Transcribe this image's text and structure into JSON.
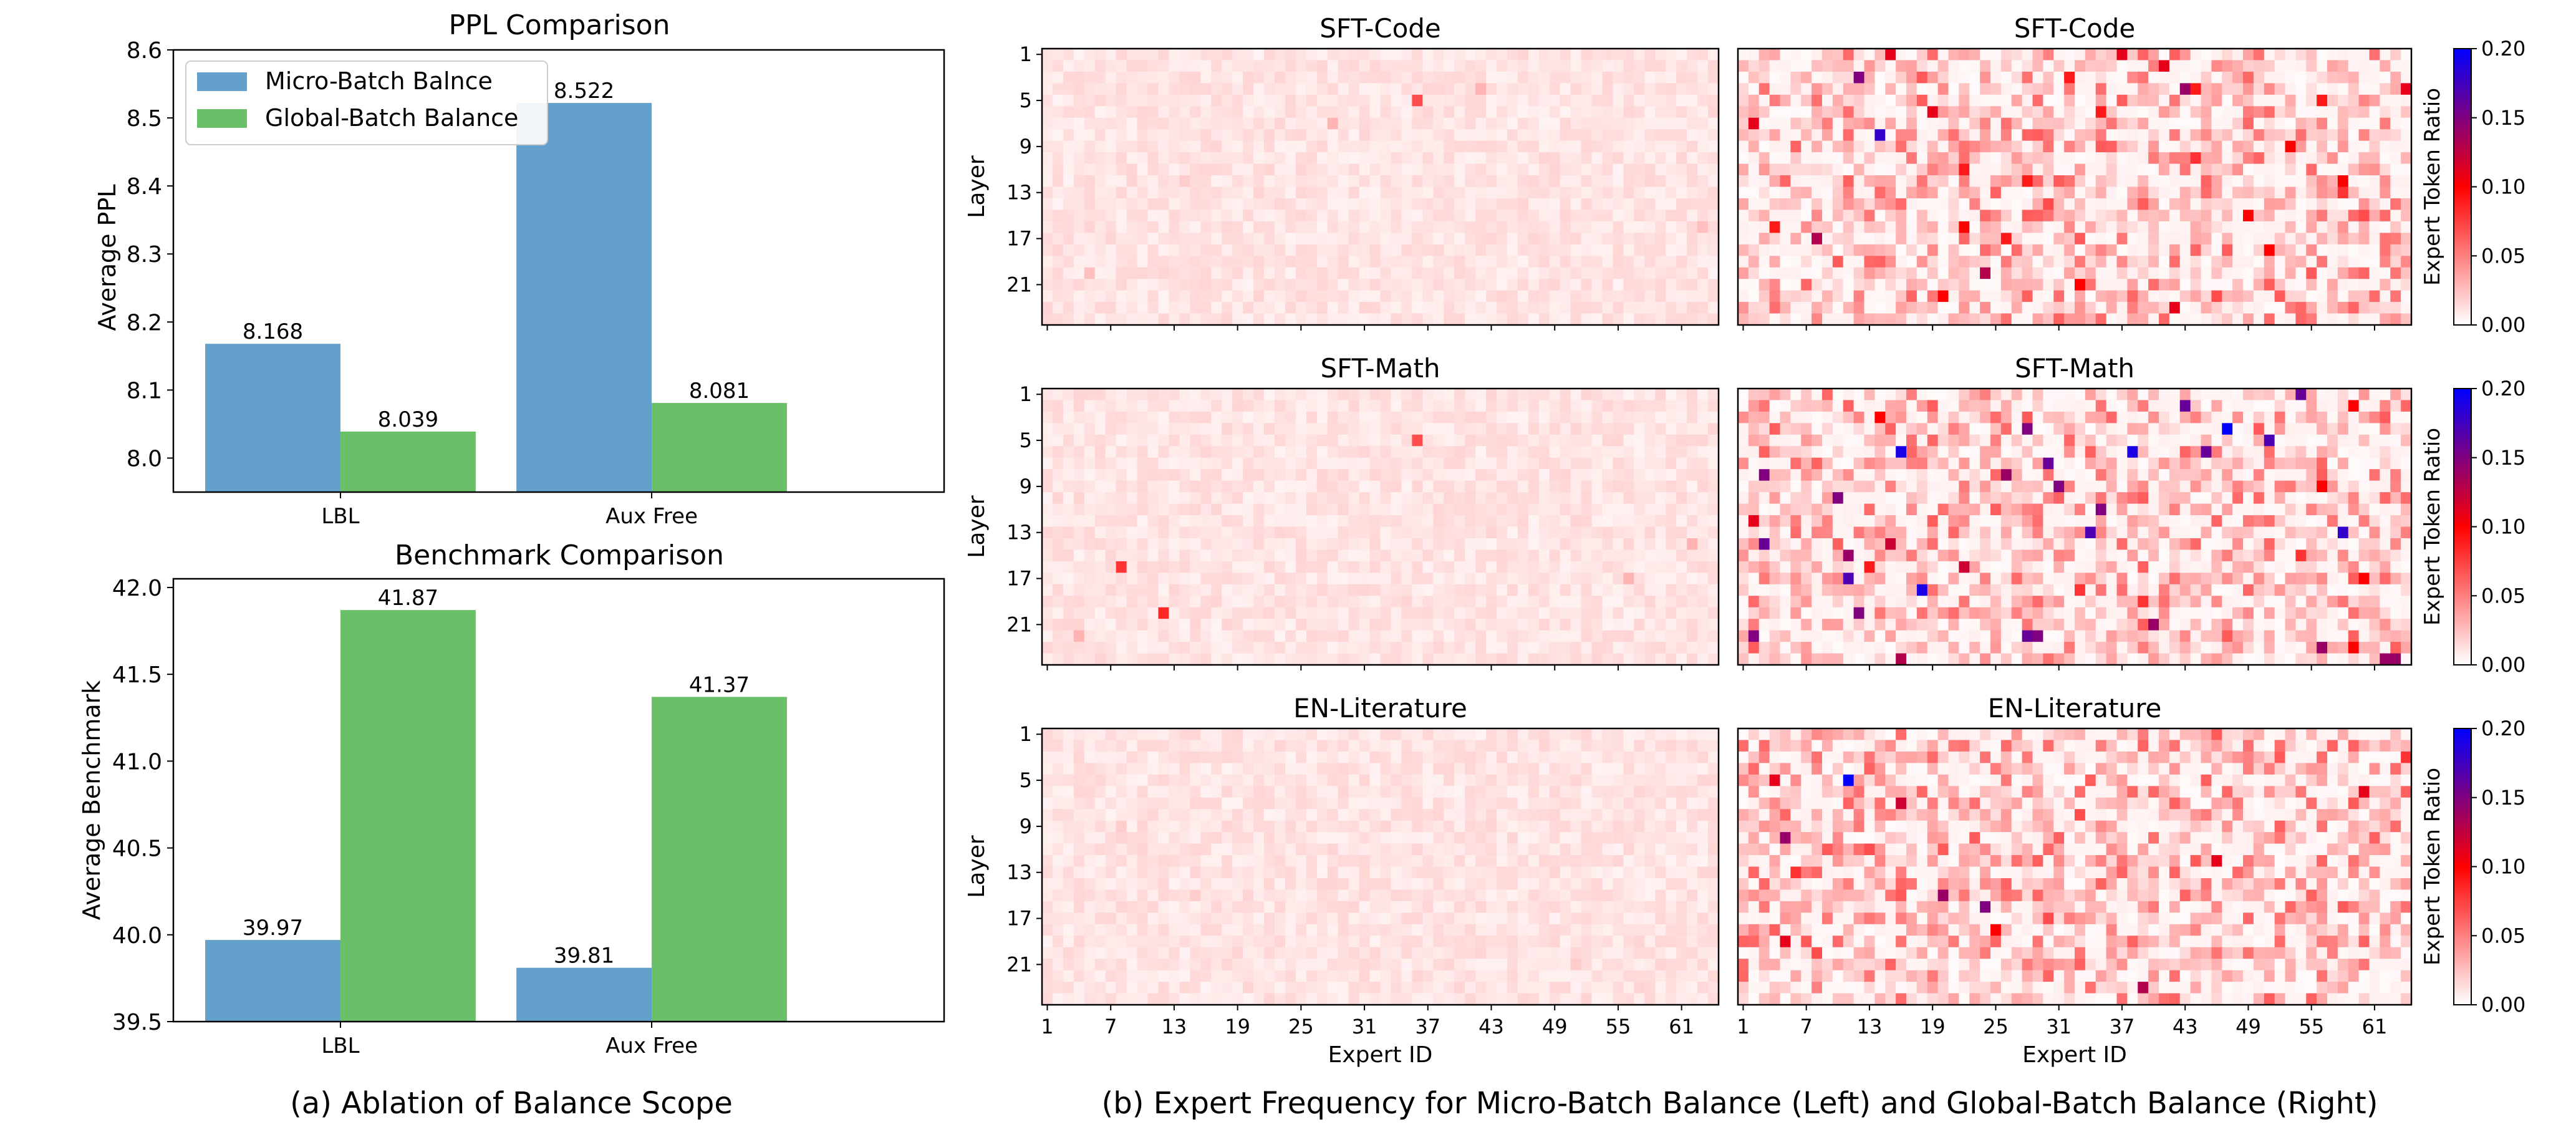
{
  "figure": {
    "caption_left": "(a) Ablation of Balance Scope",
    "caption_right": "(b) Expert Frequency for Micro-Batch Balance (Left) and Global-Batch Balance (Right)"
  },
  "colors": {
    "micro": "#63a1cc",
    "global": "#6abf69",
    "axis": "#000000"
  },
  "chart_data": [
    {
      "type": "bar",
      "title": "PPL Comparison",
      "xlabel": "",
      "ylabel": "Average PPL",
      "categories": [
        "LBL",
        "Aux Free"
      ],
      "series": [
        {
          "name": "Micro-Batch Balnce",
          "values": [
            8.168,
            8.522
          ],
          "labels": [
            "8.168",
            "8.522"
          ]
        },
        {
          "name": "Global-Batch Balance",
          "values": [
            8.039,
            8.081
          ],
          "labels": [
            "8.039",
            "8.081"
          ]
        }
      ],
      "ylim": [
        7.95,
        8.6
      ],
      "yticks": [
        "8.0",
        "8.1",
        "8.2",
        "8.3",
        "8.4",
        "8.5",
        "8.6"
      ],
      "legend": "top-left",
      "grid": false
    },
    {
      "type": "bar",
      "title": "Benchmark Comparison",
      "xlabel": "",
      "ylabel": "Average Benchmark",
      "categories": [
        "LBL",
        "Aux Free"
      ],
      "series": [
        {
          "values": [
            39.97,
            39.81
          ],
          "labels": [
            "39.97",
            "39.81"
          ]
        },
        {
          "values": [
            41.87,
            41.37
          ],
          "labels": [
            "41.87",
            "41.37"
          ]
        }
      ],
      "ylim": [
        39.5,
        42.05
      ],
      "yticks": [
        "39.5",
        "40.0",
        "40.5",
        "41.0",
        "41.5",
        "42.0"
      ],
      "grid": false
    },
    {
      "type": "heatmap",
      "x_label": "Expert ID",
      "y_label": "Layer",
      "colorbar_label": "Expert Token Ratio",
      "colorbar_ticks": [
        "0.00",
        "0.05",
        "0.10",
        "0.15",
        "0.20"
      ],
      "value_range": [
        0,
        0.2
      ],
      "colormap": [
        "#ffffff",
        "#ff0000",
        "#0000ff"
      ],
      "n_experts": 64,
      "n_layers": 24,
      "x_ticks": [
        "1",
        "7",
        "13",
        "19",
        "25",
        "31",
        "37",
        "43",
        "49",
        "55",
        "61"
      ],
      "y_ticks": [
        "1",
        "5",
        "9",
        "13",
        "17",
        "21"
      ],
      "rows": [
        {
          "title": "SFT-Code",
          "micro_hot": [
            [
              4,
              35,
              0.07
            ],
            [
              3,
              41,
              0.03
            ],
            [
              6,
              27,
              0.03
            ],
            [
              15,
              62,
              0.025
            ],
            [
              19,
              4,
              0.025
            ],
            [
              11,
              13,
              0.02
            ]
          ],
          "global_hot": [
            [
              0,
              14,
              0.11
            ],
            [
              0,
              36,
              0.11
            ],
            [
              1,
              40,
              0.11
            ],
            [
              2,
              11,
              0.15
            ],
            [
              2,
              31,
              0.09
            ],
            [
              3,
              43,
              0.09
            ],
            [
              3,
              42,
              0.14
            ],
            [
              3,
              63,
              0.11
            ],
            [
              4,
              55,
              0.09
            ],
            [
              5,
              18,
              0.11
            ],
            [
              5,
              34,
              0.09
            ],
            [
              6,
              1,
              0.11
            ],
            [
              7,
              13,
              0.18
            ],
            [
              8,
              52,
              0.1
            ],
            [
              9,
              43,
              0.08
            ],
            [
              10,
              21,
              0.09
            ],
            [
              11,
              57,
              0.1
            ],
            [
              11,
              27,
              0.09
            ],
            [
              12,
              57,
              0.08
            ],
            [
              14,
              59,
              0.07
            ],
            [
              14,
              48,
              0.1
            ],
            [
              15,
              21,
              0.1
            ],
            [
              15,
              3,
              0.09
            ],
            [
              16,
              7,
              0.13
            ],
            [
              16,
              25,
              0.09
            ],
            [
              17,
              50,
              0.1
            ],
            [
              19,
              23,
              0.13
            ],
            [
              20,
              32,
              0.1
            ],
            [
              21,
              19,
              0.1
            ],
            [
              22,
              41,
              0.11
            ],
            [
              11,
              4,
              0.06
            ],
            [
              18,
              12,
              0.06
            ],
            [
              6,
              48,
              0.06
            ],
            [
              21,
              45,
              0.07
            ],
            [
              13,
              29,
              0.07
            ]
          ]
        },
        {
          "title": "SFT-Math",
          "micro_hot": [
            [
              4,
              35,
              0.07
            ],
            [
              15,
              7,
              0.08
            ],
            [
              19,
              11,
              0.085
            ],
            [
              21,
              3,
              0.03
            ],
            [
              16,
              55,
              0.03
            ],
            [
              13,
              61,
              0.03
            ]
          ],
          "global_hot": [
            [
              0,
              53,
              0.16
            ],
            [
              1,
              42,
              0.16
            ],
            [
              1,
              58,
              0.1
            ],
            [
              2,
              13,
              0.1
            ],
            [
              3,
              46,
              0.2
            ],
            [
              3,
              27,
              0.15
            ],
            [
              4,
              50,
              0.17
            ],
            [
              5,
              15,
              0.19
            ],
            [
              5,
              37,
              0.19
            ],
            [
              5,
              44,
              0.16
            ],
            [
              6,
              29,
              0.16
            ],
            [
              7,
              2,
              0.15
            ],
            [
              7,
              25,
              0.14
            ],
            [
              8,
              30,
              0.15
            ],
            [
              8,
              55,
              0.1
            ],
            [
              9,
              9,
              0.15
            ],
            [
              10,
              34,
              0.15
            ],
            [
              11,
              1,
              0.11
            ],
            [
              12,
              33,
              0.17
            ],
            [
              12,
              57,
              0.18
            ],
            [
              13,
              14,
              0.12
            ],
            [
              14,
              10,
              0.14
            ],
            [
              15,
              12,
              0.09
            ],
            [
              15,
              21,
              0.12
            ],
            [
              16,
              10,
              0.17
            ],
            [
              16,
              59,
              0.1
            ],
            [
              17,
              17,
              0.19
            ],
            [
              19,
              11,
              0.15
            ],
            [
              20,
              39,
              0.14
            ],
            [
              21,
              1,
              0.15
            ],
            [
              21,
              27,
              0.16
            ],
            [
              21,
              28,
              0.15
            ],
            [
              22,
              55,
              0.14
            ],
            [
              22,
              58,
              0.1
            ],
            [
              23,
              15,
              0.13
            ],
            [
              23,
              61,
              0.14
            ],
            [
              23,
              62,
              0.14
            ],
            [
              17,
              32,
              0.08
            ],
            [
              14,
              53,
              0.08
            ],
            [
              18,
              38,
              0.08
            ],
            [
              13,
              2,
              0.16
            ]
          ]
        },
        {
          "title": "EN-Literature",
          "micro_hot": [
            [
              14,
              14,
              0.02
            ],
            [
              20,
              50,
              0.02
            ],
            [
              8,
              7,
              0.02
            ]
          ],
          "global_hot": [
            [
              4,
              3,
              0.11
            ],
            [
              4,
              10,
              0.2
            ],
            [
              2,
              63,
              0.08
            ],
            [
              5,
              59,
              0.11
            ],
            [
              6,
              15,
              0.12
            ],
            [
              9,
              4,
              0.14
            ],
            [
              11,
              45,
              0.11
            ],
            [
              12,
              5,
              0.08
            ],
            [
              14,
              19,
              0.14
            ],
            [
              15,
              23,
              0.15
            ],
            [
              17,
              24,
              0.1
            ],
            [
              18,
              4,
              0.11
            ],
            [
              22,
              38,
              0.13
            ],
            [
              7,
              32,
              0.07
            ],
            [
              19,
              7,
              0.07
            ],
            [
              16,
              29,
              0.07
            ],
            [
              10,
              12,
              0.07
            ]
          ]
        }
      ]
    }
  ]
}
